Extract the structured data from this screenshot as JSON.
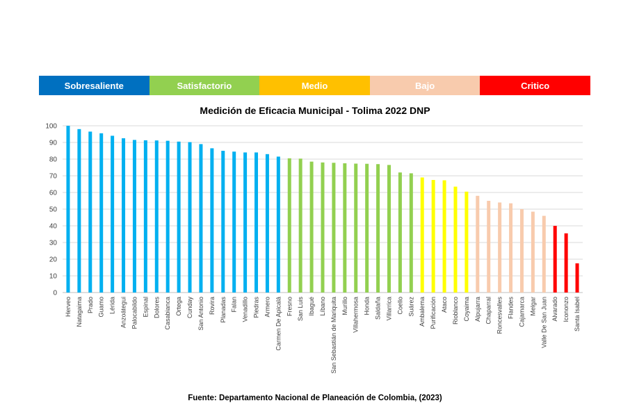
{
  "legend": [
    {
      "label": "Sobresaliente",
      "color": "#0070C0"
    },
    {
      "label": "Satisfactorio",
      "color": "#92D050"
    },
    {
      "label": "Medio",
      "color": "#FFC000"
    },
    {
      "label": "Bajo",
      "color": "#F8CBAD"
    },
    {
      "label": "Critico",
      "color": "#FF0000"
    }
  ],
  "source": "Fuente: Departamento Nacional de Planeación de Colombia, (2023)",
  "chart_data": {
    "type": "bar",
    "title": "Medición de Eficacia Municipal - Tolima 2022 DNP",
    "xlabel": "",
    "ylabel": "",
    "ylim": [
      0,
      100
    ],
    "yticks": [
      0,
      10,
      20,
      30,
      40,
      50,
      60,
      70,
      80,
      90,
      100
    ],
    "grid": true,
    "legend_position": "top",
    "categories": [
      "Herveo",
      "Natagaima",
      "Prado",
      "Guamo",
      "Lérida",
      "Anzoátegui",
      "Palocabildo",
      "Espinal",
      "Dolores",
      "Casabianca",
      "Ortega",
      "Cunday",
      "San Antonio",
      "Rovira",
      "Planadas",
      "Falan",
      "Venadillo",
      "Piedras",
      "Armero",
      "Carmen De Apicalá",
      "Fresno",
      "San Luis",
      "Ibagué",
      "Líbano",
      "San Sebastián de Mariquita",
      "Murillo",
      "Villahermosa",
      "Honda",
      "Saldaña",
      "Villarrica",
      "Coello",
      "Suárez",
      "Ambalema",
      "Purificación",
      "Ataco",
      "Rioblanco",
      "Coyaima",
      "Alpujarra",
      "Chaparral",
      "Roncesvalles",
      "Flandes",
      "Cajamarca",
      "Melgar",
      "Valle De San Juan",
      "Alvarado",
      "Icononzo",
      "Santa Isabel"
    ],
    "values": [
      100,
      98,
      96.5,
      95.5,
      94,
      92.5,
      91.5,
      91.3,
      91.2,
      91,
      90.5,
      90.2,
      89,
      86.5,
      85,
      84.5,
      84,
      84,
      83,
      81.5,
      80.5,
      80.3,
      78.5,
      78,
      77.8,
      77.5,
      77.3,
      77.2,
      77,
      76.5,
      72,
      71.5,
      69,
      67.5,
      67.3,
      63.5,
      60.5,
      58,
      55,
      54,
      53.5,
      50,
      48.5,
      46,
      40,
      35.5,
      17.5
    ],
    "bar_colors": [
      "#00B0F0",
      "#00B0F0",
      "#00B0F0",
      "#00B0F0",
      "#00B0F0",
      "#00B0F0",
      "#00B0F0",
      "#00B0F0",
      "#00B0F0",
      "#00B0F0",
      "#00B0F0",
      "#00B0F0",
      "#00B0F0",
      "#00B0F0",
      "#00B0F0",
      "#00B0F0",
      "#00B0F0",
      "#00B0F0",
      "#00B0F0",
      "#00B0F0",
      "#92D050",
      "#92D050",
      "#92D050",
      "#92D050",
      "#92D050",
      "#92D050",
      "#92D050",
      "#92D050",
      "#92D050",
      "#92D050",
      "#92D050",
      "#92D050",
      "#FFFF00",
      "#FFFF00",
      "#FFFF00",
      "#FFFF00",
      "#FFFF00",
      "#F8CBAD",
      "#F8CBAD",
      "#F8CBAD",
      "#F8CBAD",
      "#F8CBAD",
      "#F8CBAD",
      "#F8CBAD",
      "#FF0000",
      "#FF0000",
      "#FF0000"
    ]
  }
}
